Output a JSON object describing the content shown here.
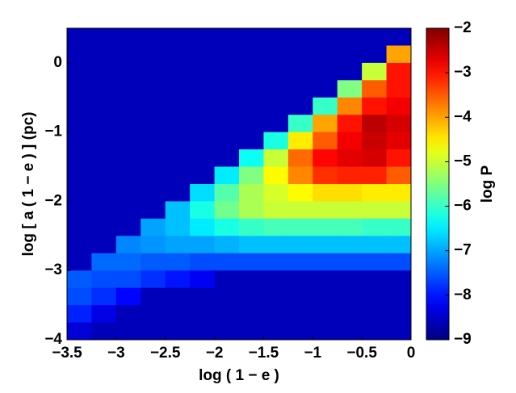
{
  "chart_data": {
    "type": "heatmap",
    "x_label": "log ( 1 − e )",
    "y_label": "log [ a ( 1 − e ) ]  (pc)",
    "colorbar_label": "log P",
    "colormap": "jet",
    "x": [
      -3.375,
      -3.125,
      -2.875,
      -2.625,
      -2.375,
      -2.125,
      -1.875,
      -1.625,
      -1.375,
      -1.125,
      -0.875,
      -0.625,
      -0.375,
      -0.125
    ],
    "y": [
      0.375,
      0.125,
      -0.125,
      -0.375,
      -0.625,
      -0.875,
      -1.125,
      -1.375,
      -1.625,
      -1.875,
      -2.125,
      -2.375,
      -2.625,
      -2.875,
      -3.125,
      -3.375,
      -3.625,
      -3.875
    ],
    "values": [
      [
        -8.6,
        -8.6,
        -8.6,
        -8.6,
        -8.6,
        -8.6,
        -8.6,
        -8.6,
        -8.6,
        -8.6,
        -8.6,
        -8.6,
        -8.6,
        -8.6
      ],
      [
        -8.6,
        -8.6,
        -8.6,
        -8.6,
        -8.6,
        -8.6,
        -8.6,
        -8.6,
        -8.6,
        -8.6,
        -8.6,
        -8.6,
        -8.6,
        -4
      ],
      [
        -8.6,
        -8.6,
        -8.6,
        -8.6,
        -8.6,
        -8.6,
        -8.6,
        -8.6,
        -8.6,
        -8.6,
        -8.6,
        -8.6,
        -5,
        -3
      ],
      [
        -8.6,
        -8.6,
        -8.6,
        -8.6,
        -8.6,
        -8.6,
        -8.6,
        -8.6,
        -8.6,
        -8.6,
        -8.6,
        -5.5,
        -3.5,
        -3
      ],
      [
        -8.6,
        -8.6,
        -8.6,
        -8.6,
        -8.6,
        -8.6,
        -8.6,
        -8.6,
        -8.6,
        -8.6,
        -6,
        -3.8,
        -3,
        -2.8
      ],
      [
        -8.6,
        -8.6,
        -8.6,
        -8.6,
        -8.6,
        -8.6,
        -8.6,
        -8.6,
        -8.6,
        -6,
        -4,
        -3,
        -2.4,
        -2.6
      ],
      [
        -8.6,
        -8.6,
        -8.6,
        -8.6,
        -8.6,
        -8.6,
        -8.6,
        -8.6,
        -6.2,
        -4.5,
        -3.5,
        -2.8,
        -2.5,
        -2.7
      ],
      [
        -8.6,
        -8.6,
        -8.6,
        -8.6,
        -8.6,
        -8.6,
        -8.6,
        -6.3,
        -5,
        -3.6,
        -2.9,
        -2.7,
        -2.6,
        -3
      ],
      [
        -8.6,
        -8.6,
        -8.6,
        -8.6,
        -8.6,
        -8.6,
        -6.5,
        -5.5,
        -4.6,
        -3.8,
        -3.2,
        -3.1,
        -3.1,
        -3.5
      ],
      [
        -8.6,
        -8.6,
        -8.6,
        -8.6,
        -8.6,
        -6.6,
        -5.8,
        -5.2,
        -4.9,
        -4.6,
        -4.4,
        -4.4,
        -4.5,
        -4.5
      ],
      [
        -8.6,
        -8.6,
        -8.6,
        -8.6,
        -6.8,
        -6.2,
        -5.6,
        -5.2,
        -5,
        -5,
        -5,
        -5,
        -5,
        -5
      ],
      [
        -8.6,
        -8.6,
        -8.6,
        -7,
        -6.8,
        -6.5,
        -6.2,
        -6,
        -5.9,
        -5.9,
        -5.9,
        -5.9,
        -6,
        -6
      ],
      [
        -8.6,
        -8.6,
        -7.2,
        -7.1,
        -7,
        -7,
        -6.9,
        -6.8,
        -6.8,
        -6.8,
        -6.8,
        -6.8,
        -6.8,
        -6.8
      ],
      [
        -8.6,
        -7.4,
        -7.4,
        -7.5,
        -7.5,
        -7.6,
        -7.6,
        -7.6,
        -7.6,
        -7.6,
        -7.6,
        -7.6,
        -7.6,
        -7.6
      ],
      [
        -7.5,
        -7.6,
        -7.6,
        -7.8,
        -8,
        -8.2,
        -8.6,
        -8.6,
        -8.6,
        -8.6,
        -8.6,
        -8.6,
        -8.6,
        -8.6
      ],
      [
        -7.6,
        -7.8,
        -8.1,
        -8.6,
        -8.6,
        -8.6,
        -8.6,
        -8.6,
        -8.6,
        -8.6,
        -8.6,
        -8.6,
        -8.6,
        -8.6
      ],
      [
        -7.9,
        -8.3,
        -8.6,
        -8.6,
        -8.6,
        -8.6,
        -8.6,
        -8.6,
        -8.6,
        -8.6,
        -8.6,
        -8.6,
        -8.6,
        -8.6
      ],
      [
        -8.4,
        -8.6,
        -8.6,
        -8.6,
        -8.6,
        -8.6,
        -8.6,
        -8.6,
        -8.6,
        -8.6,
        -8.6,
        -8.6,
        -8.6,
        -8.6
      ]
    ],
    "xlim": [
      -3.5,
      0
    ],
    "ylim": [
      -4,
      0.5
    ],
    "clim": [
      -9,
      -2
    ],
    "xticks": [
      {
        "value": -3.5,
        "label": "−3.5"
      },
      {
        "value": -3,
        "label": "−3"
      },
      {
        "value": -2.5,
        "label": "−2.5"
      },
      {
        "value": -2,
        "label": "−2"
      },
      {
        "value": -1.5,
        "label": "−1.5"
      },
      {
        "value": -1,
        "label": "−1"
      },
      {
        "value": -0.5,
        "label": "−0.5"
      },
      0
    ],
    "yticks": [
      {
        "value": -4,
        "label": "−4"
      },
      {
        "value": -3,
        "label": "−3"
      },
      {
        "value": -2,
        "label": "−2"
      },
      {
        "value": -1,
        "label": "−1"
      },
      0
    ],
    "cticks": [
      {
        "value": -9,
        "label": "−9"
      },
      {
        "value": -8,
        "label": "−8"
      },
      {
        "value": -7,
        "label": "−7"
      },
      {
        "value": -6,
        "label": "−6"
      },
      {
        "value": -5,
        "label": "−5"
      },
      {
        "value": -4,
        "label": "−4"
      },
      {
        "value": -3,
        "label": "−3"
      },
      {
        "value": -2,
        "label": "−2"
      }
    ]
  }
}
